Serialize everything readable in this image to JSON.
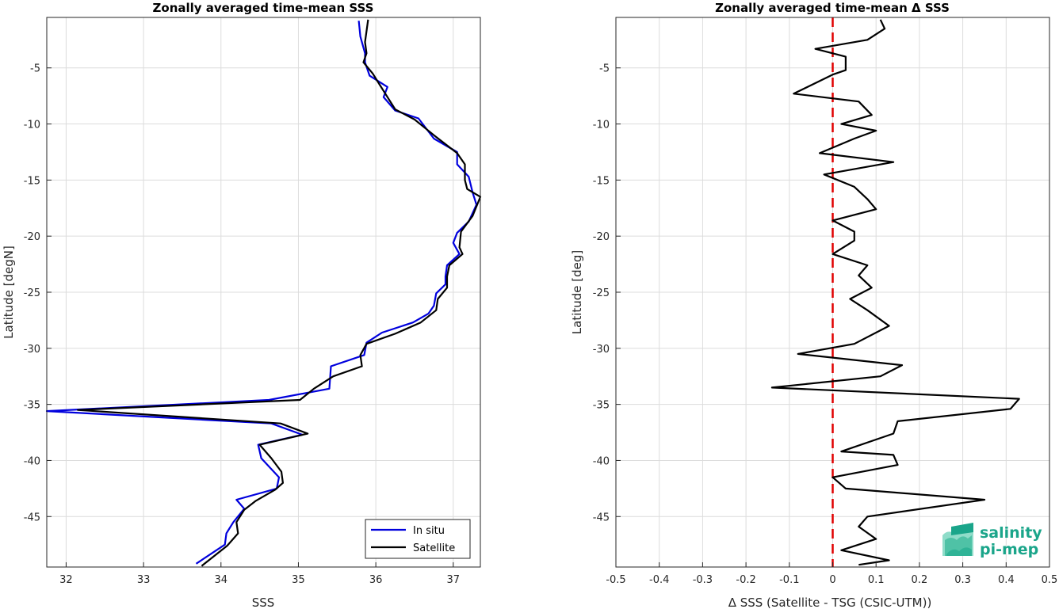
{
  "chart_data": [
    {
      "type": "line",
      "title": "Zonally averaged time-mean SSS",
      "xlabel": "SSS",
      "ylabel": "Latitude [degN]",
      "xlim": [
        31.75,
        37.35
      ],
      "ylim": [
        -49.5,
        -0.5
      ],
      "xticks": [
        32,
        33,
        34,
        35,
        36,
        37
      ],
      "yticks": [
        -5,
        -10,
        -15,
        -20,
        -25,
        -30,
        -35,
        -40,
        -45
      ],
      "grid": true,
      "legend": "bottom-right",
      "series": [
        {
          "name": "In situ",
          "color": "#0000dd",
          "points": [
            [
              35.78,
              -0.8
            ],
            [
              35.8,
              -2.2
            ],
            [
              35.86,
              -3.7
            ],
            [
              35.86,
              -4.5
            ],
            [
              35.92,
              -5.7
            ],
            [
              36.15,
              -6.7
            ],
            [
              36.1,
              -7.6
            ],
            [
              36.25,
              -8.8
            ],
            [
              36.55,
              -9.5
            ],
            [
              36.75,
              -11.3
            ],
            [
              37.05,
              -12.5
            ],
            [
              37.05,
              -13.6
            ],
            [
              37.2,
              -14.7
            ],
            [
              37.25,
              -16.1
            ],
            [
              37.3,
              -17.2
            ],
            [
              37.2,
              -18.7
            ],
            [
              37.05,
              -19.7
            ],
            [
              37.0,
              -20.6
            ],
            [
              37.08,
              -21.6
            ],
            [
              36.92,
              -22.6
            ],
            [
              36.9,
              -23.6
            ],
            [
              36.9,
              -24.3
            ],
            [
              36.78,
              -25.1
            ],
            [
              36.75,
              -26.2
            ],
            [
              36.68,
              -26.9
            ],
            [
              36.48,
              -27.7
            ],
            [
              36.08,
              -28.6
            ],
            [
              35.88,
              -29.5
            ],
            [
              35.85,
              -30.6
            ],
            [
              35.42,
              -31.6
            ],
            [
              35.4,
              -33.6
            ],
            [
              34.62,
              -34.6
            ],
            [
              31.75,
              -35.6
            ],
            [
              34.65,
              -36.7
            ],
            [
              35.05,
              -37.7
            ],
            [
              34.48,
              -38.6
            ],
            [
              34.52,
              -39.8
            ],
            [
              34.75,
              -41.5
            ],
            [
              34.72,
              -42.5
            ],
            [
              34.2,
              -43.5
            ],
            [
              34.3,
              -44.3
            ],
            [
              34.16,
              -45.5
            ],
            [
              34.07,
              -46.5
            ],
            [
              34.05,
              -47.5
            ],
            [
              33.68,
              -49.2
            ]
          ]
        },
        {
          "name": "Satellite",
          "color": "#000000",
          "points": [
            [
              35.9,
              -0.7
            ],
            [
              35.86,
              -2.7
            ],
            [
              35.88,
              -3.7
            ],
            [
              35.84,
              -4.5
            ],
            [
              35.96,
              -5.5
            ],
            [
              36.05,
              -6.5
            ],
            [
              36.15,
              -7.6
            ],
            [
              36.25,
              -8.7
            ],
            [
              36.5,
              -9.6
            ],
            [
              36.75,
              -11.0
            ],
            [
              37.05,
              -12.6
            ],
            [
              37.15,
              -13.6
            ],
            [
              37.15,
              -15.0
            ],
            [
              37.18,
              -15.8
            ],
            [
              37.35,
              -16.5
            ],
            [
              37.25,
              -18.2
            ],
            [
              37.1,
              -19.6
            ],
            [
              37.08,
              -21.0
            ],
            [
              37.12,
              -21.6
            ],
            [
              36.95,
              -22.6
            ],
            [
              36.92,
              -23.6
            ],
            [
              36.92,
              -24.6
            ],
            [
              36.8,
              -25.6
            ],
            [
              36.78,
              -26.6
            ],
            [
              36.58,
              -27.7
            ],
            [
              36.25,
              -28.7
            ],
            [
              35.88,
              -29.6
            ],
            [
              35.8,
              -30.6
            ],
            [
              35.82,
              -31.6
            ],
            [
              35.45,
              -32.5
            ],
            [
              35.2,
              -33.6
            ],
            [
              35.02,
              -34.6
            ],
            [
              32.15,
              -35.5
            ],
            [
              34.77,
              -36.7
            ],
            [
              35.12,
              -37.6
            ],
            [
              34.5,
              -38.6
            ],
            [
              34.65,
              -39.8
            ],
            [
              34.78,
              -41.0
            ],
            [
              34.8,
              -42.0
            ],
            [
              34.7,
              -42.6
            ],
            [
              34.45,
              -43.6
            ],
            [
              34.3,
              -44.4
            ],
            [
              34.2,
              -45.5
            ],
            [
              34.22,
              -46.5
            ],
            [
              34.08,
              -47.6
            ],
            [
              33.75,
              -49.4
            ]
          ]
        }
      ]
    },
    {
      "type": "line",
      "title": "Zonally averaged time-mean Δ SSS",
      "xlabel": "Δ SSS (Satellite - TSG (CSIC-UTM))",
      "ylabel": "Latitude [deg]",
      "xlim": [
        -0.5,
        0.5
      ],
      "ylim": [
        -49.5,
        -0.5
      ],
      "xticks": [
        -0.5,
        -0.4,
        -0.3,
        -0.2,
        -0.1,
        0,
        0.1,
        0.2,
        0.3,
        0.4,
        0.5
      ],
      "xtick_labels": [
        "-0.5",
        "-0.4",
        "-0.3",
        "-0.2",
        "-0.1",
        "0",
        "0.1",
        "0.2",
        "0.3",
        "0.4",
        "0.5"
      ],
      "yticks": [
        -5,
        -10,
        -15,
        -20,
        -25,
        -30,
        -35,
        -40,
        -45
      ],
      "grid": true,
      "zero_line_color": "#e00000",
      "series": [
        {
          "color": "#000000",
          "points": [
            [
              0.11,
              -0.7
            ],
            [
              0.12,
              -1.5
            ],
            [
              0.08,
              -2.5
            ],
            [
              -0.04,
              -3.3
            ],
            [
              0.03,
              -4.0
            ],
            [
              0.03,
              -5.2
            ],
            [
              0.0,
              -5.6
            ],
            [
              -0.09,
              -7.3
            ],
            [
              0.06,
              -8.0
            ],
            [
              0.09,
              -9.2
            ],
            [
              0.02,
              -10.0
            ],
            [
              0.1,
              -10.6
            ],
            [
              0.05,
              -11.3
            ],
            [
              -0.03,
              -12.6
            ],
            [
              0.14,
              -13.4
            ],
            [
              -0.02,
              -14.5
            ],
            [
              0.05,
              -15.6
            ],
            [
              0.08,
              -16.7
            ],
            [
              0.1,
              -17.6
            ],
            [
              0.0,
              -18.6
            ],
            [
              0.05,
              -19.6
            ],
            [
              0.05,
              -20.4
            ],
            [
              0.0,
              -21.6
            ],
            [
              0.08,
              -22.6
            ],
            [
              0.06,
              -23.5
            ],
            [
              0.09,
              -24.6
            ],
            [
              0.04,
              -25.6
            ],
            [
              0.08,
              -26.6
            ],
            [
              0.13,
              -28.0
            ],
            [
              0.05,
              -29.6
            ],
            [
              -0.08,
              -30.5
            ],
            [
              0.16,
              -31.5
            ],
            [
              0.11,
              -32.5
            ],
            [
              -0.14,
              -33.5
            ],
            [
              0.43,
              -34.5
            ],
            [
              0.41,
              -35.4
            ],
            [
              0.15,
              -36.5
            ],
            [
              0.14,
              -37.6
            ],
            [
              0.02,
              -39.2
            ],
            [
              0.14,
              -39.5
            ],
            [
              0.15,
              -40.4
            ],
            [
              0.0,
              -41.5
            ],
            [
              0.03,
              -42.5
            ],
            [
              0.35,
              -43.5
            ],
            [
              0.08,
              -45.0
            ],
            [
              0.06,
              -45.9
            ],
            [
              0.1,
              -47.0
            ],
            [
              0.02,
              -48.0
            ],
            [
              0.13,
              -48.9
            ],
            [
              0.06,
              -49.3
            ]
          ]
        }
      ]
    }
  ],
  "logo": {
    "line1": "salinity",
    "line2": "pi-mep",
    "color": "#1aa58a",
    "icon": "salinity-pi-mep-logo-icon"
  }
}
